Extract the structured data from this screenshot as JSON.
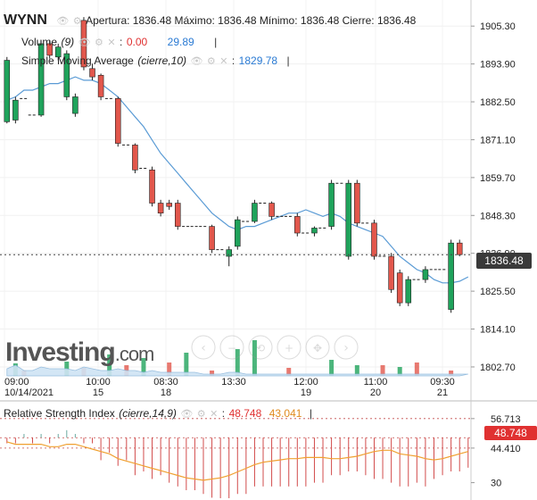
{
  "header": {
    "symbol": "WYNN",
    "ohlc_text": "Apertura: 1836.48 Máximo: 1836.48 Mínimo: 1836.48 Cierre: 1836.48",
    "volume_label": "Volume",
    "volume_param": "(9)",
    "volume_value_red": "0.00",
    "volume_value_blue": "29.89",
    "sma_label": "Simple Moving Average",
    "sma_param": "(cierre,10)",
    "sma_value": "1829.78",
    "rsi_label": "Relative Strength Index",
    "rsi_param": "(cierre,14,9)",
    "rsi_value_red": "48.748",
    "rsi_value_orange": "43.041",
    "separator": "|",
    "colon": ":"
  },
  "price_tag": "1836.48",
  "rsi_tag": "48.748",
  "watermark": {
    "brand": "Investing",
    "suffix": ".com"
  },
  "colors": {
    "up": "#1fa35b",
    "down": "#e2574c",
    "sma": "#5a9bd5",
    "rsi": "#f0a030",
    "volume": "#9fcbe8",
    "tag_dark": "#3a3a3a",
    "tag_red": "#e03131"
  },
  "chart_data": [
    {
      "type": "candlestick",
      "title": "WYNN",
      "y_ticks": [
        "1905.30",
        "1893.90",
        "1882.50",
        "1871.10",
        "1859.70",
        "1848.30",
        "1836.90",
        "1825.50",
        "1814.10",
        "1802.70"
      ],
      "x_ticks": [
        {
          "time": "09:00",
          "date": "10/14/2021"
        },
        {
          "time": "10:00",
          "date": "15"
        },
        {
          "time": "08:30",
          "date": "18"
        },
        {
          "time": "13:30",
          "date": ""
        },
        {
          "time": "12:00",
          "date": "19"
        },
        {
          "time": "11:00",
          "date": "20"
        },
        {
          "time": "09:30",
          "date": "21"
        }
      ],
      "ylim": [
        1800,
        1911
      ],
      "last_price": 1836.48,
      "candles": [
        {
          "o": 1876.5,
          "h": 1896,
          "l": 1876,
          "c": 1895
        },
        {
          "o": 1877,
          "h": 1884,
          "l": 1876,
          "c": 1883
        },
        {
          "o": 1883,
          "h": 1884,
          "l": 1883,
          "c": 1883.5
        },
        {
          "o": 1878.5,
          "h": 1879,
          "l": 1878,
          "c": 1878.5
        },
        {
          "o": 1878.5,
          "h": 1901,
          "l": 1878,
          "c": 1900
        },
        {
          "o": 1900,
          "h": 1901,
          "l": 1895.5,
          "c": 1896.5
        },
        {
          "o": 1896,
          "h": 1900,
          "l": 1895,
          "c": 1899
        },
        {
          "o": 1884,
          "h": 1898,
          "l": 1883,
          "c": 1897
        },
        {
          "o": 1879,
          "h": 1885,
          "l": 1878,
          "c": 1884
        },
        {
          "o": 1907,
          "h": 1908,
          "l": 1892,
          "c": 1893
        },
        {
          "o": 1892.5,
          "h": 1894,
          "l": 1889,
          "c": 1890
        },
        {
          "o": 1890.5,
          "h": 1891,
          "l": 1883,
          "c": 1884
        },
        {
          "o": 1883.5,
          "h": 1884,
          "l": 1883,
          "c": 1883.5
        },
        {
          "o": 1883.5,
          "h": 1884,
          "l": 1869,
          "c": 1870
        },
        {
          "o": 1869.5,
          "h": 1870,
          "l": 1869,
          "c": 1869.5
        },
        {
          "o": 1869.5,
          "h": 1870,
          "l": 1861,
          "c": 1862
        },
        {
          "o": 1862,
          "h": 1863,
          "l": 1861.5,
          "c": 1862.5
        },
        {
          "o": 1862,
          "h": 1863,
          "l": 1851,
          "c": 1852
        },
        {
          "o": 1852,
          "h": 1853,
          "l": 1848,
          "c": 1849
        },
        {
          "o": 1852,
          "h": 1853,
          "l": 1850,
          "c": 1851
        },
        {
          "o": 1852,
          "h": 1853,
          "l": 1844,
          "c": 1845
        },
        {
          "o": 1845,
          "h": 1846,
          "l": 1844.5,
          "c": 1845
        },
        {
          "o": 1845,
          "h": 1845.5,
          "l": 1844.5,
          "c": 1845
        },
        {
          "o": 1845,
          "h": 1845.5,
          "l": 1844.5,
          "c": 1845
        },
        {
          "o": 1845,
          "h": 1845.5,
          "l": 1837,
          "c": 1838
        },
        {
          "o": 1838,
          "h": 1838.5,
          "l": 1837.5,
          "c": 1838
        },
        {
          "o": 1836,
          "h": 1839,
          "l": 1833,
          "c": 1838
        },
        {
          "o": 1839,
          "h": 1848,
          "l": 1838,
          "c": 1847
        },
        {
          "o": 1847,
          "h": 1848,
          "l": 1846,
          "c": 1846.5
        },
        {
          "o": 1846.5,
          "h": 1853,
          "l": 1846,
          "c": 1852
        },
        {
          "o": 1852,
          "h": 1852.5,
          "l": 1851.5,
          "c": 1852
        },
        {
          "o": 1852,
          "h": 1852.5,
          "l": 1847,
          "c": 1848
        },
        {
          "o": 1848,
          "h": 1848.5,
          "l": 1847.5,
          "c": 1848
        },
        {
          "o": 1848,
          "h": 1848.5,
          "l": 1847.5,
          "c": 1848
        },
        {
          "o": 1848,
          "h": 1849,
          "l": 1842,
          "c": 1843
        },
        {
          "o": 1843,
          "h": 1843.5,
          "l": 1842.5,
          "c": 1843
        },
        {
          "o": 1843,
          "h": 1845,
          "l": 1842,
          "c": 1844.5
        },
        {
          "o": 1844.5,
          "h": 1845,
          "l": 1844,
          "c": 1844.5
        },
        {
          "o": 1845,
          "h": 1859,
          "l": 1844,
          "c": 1858
        },
        {
          "o": 1858,
          "h": 1858.5,
          "l": 1857.5,
          "c": 1858
        },
        {
          "o": 1836,
          "h": 1859,
          "l": 1835,
          "c": 1858
        },
        {
          "o": 1858,
          "h": 1859,
          "l": 1845,
          "c": 1846
        },
        {
          "o": 1846,
          "h": 1846.5,
          "l": 1845.5,
          "c": 1846
        },
        {
          "o": 1846,
          "h": 1847,
          "l": 1835,
          "c": 1836
        },
        {
          "o": 1836,
          "h": 1836.5,
          "l": 1835.5,
          "c": 1836
        },
        {
          "o": 1836,
          "h": 1837,
          "l": 1825,
          "c": 1826
        },
        {
          "o": 1831,
          "h": 1832,
          "l": 1821,
          "c": 1822
        },
        {
          "o": 1822,
          "h": 1830,
          "l": 1821,
          "c": 1829
        },
        {
          "o": 1829,
          "h": 1829.5,
          "l": 1828.5,
          "c": 1829
        },
        {
          "o": 1829,
          "h": 1833,
          "l": 1828,
          "c": 1832
        },
        {
          "o": 1832,
          "h": 1832.5,
          "l": 1831.5,
          "c": 1832
        },
        {
          "o": 1832,
          "h": 1832.5,
          "l": 1831.5,
          "c": 1832
        },
        {
          "o": 1820,
          "h": 1841,
          "l": 1819,
          "c": 1840
        },
        {
          "o": 1840,
          "h": 1841,
          "l": 1836,
          "c": 1836.5
        }
      ],
      "sma": [
        1883,
        1884,
        1886,
        1886,
        1887,
        1888,
        1888,
        1889,
        1890,
        1889,
        1889,
        1888,
        1886,
        1884,
        1881,
        1878,
        1875,
        1871,
        1867,
        1864,
        1861,
        1858,
        1855,
        1852,
        1849,
        1847,
        1845,
        1844,
        1845,
        1845,
        1846,
        1847,
        1848,
        1849,
        1849,
        1850,
        1849,
        1848,
        1849,
        1848,
        1846,
        1845,
        1844,
        1843,
        1842,
        1839,
        1836,
        1834,
        1832,
        1831,
        1829,
        1828,
        1828,
        1828.5,
        1829.8
      ],
      "volume": [
        4,
        6,
        3,
        3,
        5,
        4,
        4,
        4,
        3,
        5,
        4,
        3,
        3,
        4,
        3,
        3,
        2,
        3,
        2,
        2,
        2,
        2,
        2,
        1,
        1,
        1,
        2,
        2,
        1,
        1,
        1,
        1,
        1,
        1,
        1,
        1,
        1,
        1,
        1,
        1,
        1,
        1,
        1,
        1,
        1,
        1,
        1,
        1,
        1,
        1,
        1,
        1,
        1,
        1,
        1
      ],
      "volume_bars_green": [
        1,
        7,
        12,
        16,
        21,
        27,
        29,
        38,
        41,
        46
      ],
      "volume_bars_red": [
        2,
        9,
        14,
        19,
        24,
        33,
        44,
        48,
        52
      ]
    },
    {
      "type": "histogram",
      "title": "Relative Strength Index",
      "y_ticks": [
        "56.713",
        "44.410",
        "30"
      ],
      "ylim": [
        25,
        60
      ],
      "rsi_hist": [
        -3,
        -3,
        2,
        -3,
        2,
        -3,
        2,
        4,
        2,
        -3,
        -3,
        -12,
        -8,
        -15,
        -12,
        -20,
        -18,
        -22,
        -20,
        -24,
        -26,
        -28,
        -28,
        -30,
        -32,
        -34,
        -34,
        -30,
        -30,
        -26,
        -26,
        -26,
        -26,
        -26,
        -26,
        -26,
        -24,
        -24,
        -20,
        -20,
        -18,
        -18,
        -20,
        -22,
        -22,
        -24,
        -26,
        -26,
        -24,
        -26,
        -22,
        -20,
        -18,
        -18,
        -16
      ],
      "signal": [
        47,
        46,
        46,
        46,
        46,
        45,
        45,
        46,
        46,
        45,
        44,
        43,
        42,
        40,
        39,
        38,
        37,
        36,
        35,
        34,
        33,
        32,
        31.5,
        31,
        31.5,
        32,
        33,
        34.5,
        36,
        37.5,
        38.5,
        39,
        39.5,
        40,
        40,
        40.5,
        40.5,
        40.5,
        40,
        40,
        40.5,
        41,
        42,
        43,
        43.5,
        43.5,
        42,
        41.5,
        41,
        40,
        39.5,
        40,
        41,
        42,
        43
      ]
    }
  ]
}
